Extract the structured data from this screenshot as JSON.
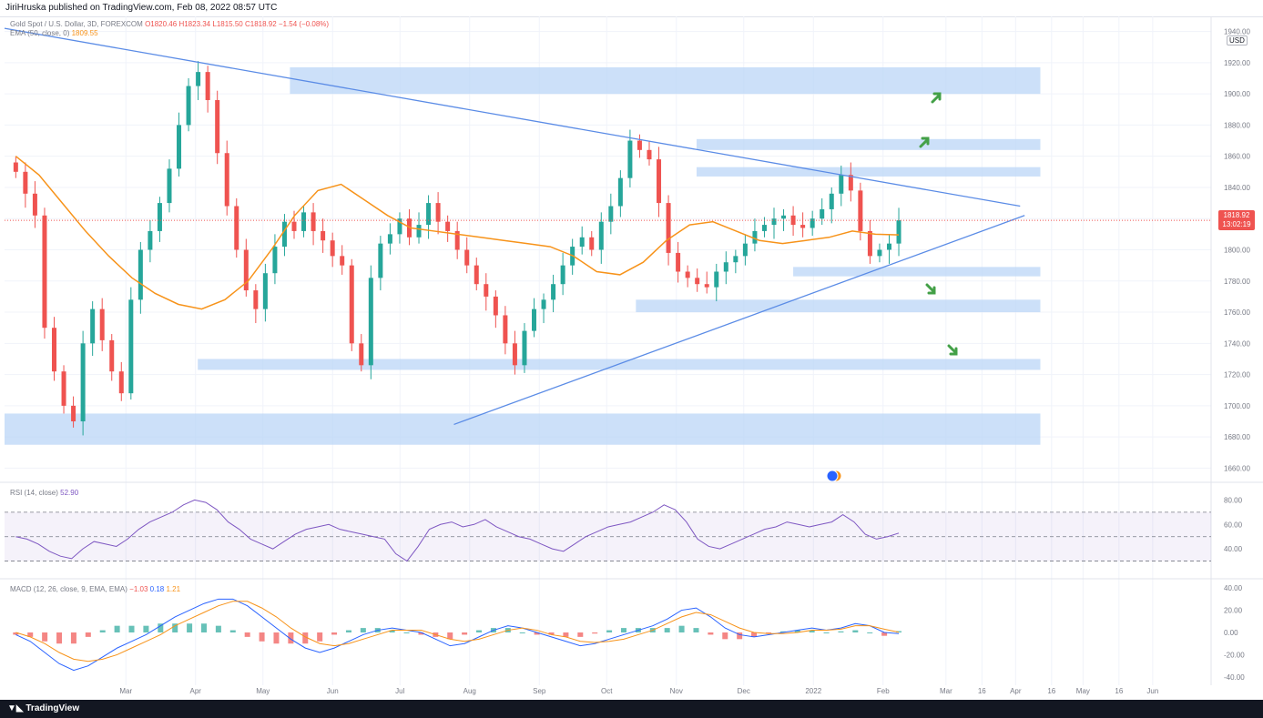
{
  "header": {
    "text": "JiriHruska published on TradingView.com, Feb 08, 2022 08:57 UTC"
  },
  "main_legend": {
    "symbol": "Gold Spot / U.S. Dollar, 3D, FOREXCOM",
    "open": "O1820.46",
    "high": "H1823.34",
    "low": "L1815.50",
    "close": "C1818.92",
    "change": "−1.54 (−0.08%)",
    "ema_label": "EMA (50, close, 0)",
    "ema_value": "1809.55"
  },
  "rsi_legend": {
    "label": "RSI (14, close)",
    "value": "52.90"
  },
  "macd_legend": {
    "label": "MACD (12, 26, close, 9, EMA, EMA)",
    "v1": "−1.03",
    "v2": "0.18",
    "v3": "1.21"
  },
  "price_badge": {
    "price": "1818.92",
    "countdown": "13:02:19"
  },
  "currency": "USD",
  "footer": {
    "brand": "TradingView"
  },
  "colors": {
    "up": "#26a69a",
    "down": "#ef5350",
    "ema": "#f7931a",
    "trendline": "#5b8ce6",
    "zone": "#bbd6f7",
    "rsi": "#7e57c2",
    "macd": "#2962ff",
    "signal": "#f7931a",
    "arrow": "#43a047"
  },
  "icons": {
    "earnings_flag": "us-flag-event-icon",
    "arrow": "green-arrow-icon"
  },
  "chart_data": [
    {
      "type": "candlestick",
      "title": "Gold Spot / U.S. Dollar, 3D, FOREXCOM",
      "xlabel": "",
      "ylabel": "",
      "y_ticks": [
        1660,
        1680,
        1700,
        1720,
        1740,
        1760,
        1780,
        1800,
        1820,
        1840,
        1860,
        1880,
        1900,
        1920,
        1940
      ],
      "x_ticks": [
        "Mar",
        "Apr",
        "May",
        "Jun",
        "Jul",
        "Aug",
        "Sep",
        "Oct",
        "Nov",
        "Dec",
        "2022",
        "Feb",
        "Mar",
        "16",
        "Apr",
        "16",
        "May",
        "16",
        "Jun"
      ],
      "ylim": [
        1655,
        1945
      ],
      "series": [
        {
          "name": "EMA (50, close, 0)",
          "values": [
            1860,
            1848,
            1830,
            1812,
            1796,
            1782,
            1772,
            1765,
            1762,
            1768,
            1780,
            1800,
            1822,
            1838,
            1842,
            1832,
            1822,
            1814,
            1812,
            1810,
            1808,
            1806,
            1804,
            1802,
            1796,
            1786,
            1784,
            1792,
            1806,
            1816,
            1818,
            1812,
            1806,
            1804,
            1806,
            1808,
            1812,
            1810,
            1809.55
          ]
        }
      ],
      "close_prices": [
        1850,
        1836,
        1822,
        1750,
        1722,
        1700,
        1690,
        1740,
        1762,
        1742,
        1722,
        1708,
        1768,
        1800,
        1812,
        1830,
        1852,
        1880,
        1905,
        1914,
        1896,
        1862,
        1828,
        1800,
        1774,
        1762,
        1785,
        1802,
        1818,
        1812,
        1824,
        1812,
        1806,
        1796,
        1790,
        1740,
        1726,
        1782,
        1804,
        1810,
        1820,
        1808,
        1816,
        1830,
        1818,
        1812,
        1800,
        1790,
        1778,
        1770,
        1758,
        1740,
        1726,
        1748,
        1762,
        1768,
        1778,
        1790,
        1802,
        1808,
        1800,
        1818,
        1828,
        1846,
        1870,
        1864,
        1858,
        1830,
        1798,
        1786,
        1782,
        1778,
        1776,
        1786,
        1792,
        1796,
        1804,
        1812,
        1816,
        1820,
        1822,
        1816,
        1814,
        1820,
        1826,
        1836,
        1848,
        1838,
        1812,
        1796,
        1800,
        1804,
        1818.92
      ],
      "horizontal_zones": [
        [
          1900,
          1917
        ],
        [
          1864,
          1871
        ],
        [
          1847,
          1853
        ],
        [
          1783,
          1789
        ],
        [
          1760,
          1768
        ],
        [
          1723,
          1730
        ],
        [
          1675,
          1695
        ]
      ],
      "trendlines": [
        {
          "from": [
            "2021-01-05",
            1942
          ],
          "to": [
            "2022-04-02",
            1828
          ]
        },
        {
          "from": [
            "2021-07-24",
            1688
          ],
          "to": [
            "2022-04-04",
            1822
          ]
        }
      ]
    },
    {
      "type": "line",
      "title": "RSI (14, close)",
      "ylim": [
        20,
        90
      ],
      "y_ticks": [
        40,
        60,
        80
      ],
      "levels": [
        30,
        50,
        70
      ],
      "series": [
        {
          "name": "RSI (14, close)",
          "values": [
            50,
            48,
            44,
            38,
            34,
            32,
            40,
            46,
            44,
            42,
            48,
            56,
            62,
            66,
            70,
            76,
            80,
            78,
            72,
            62,
            56,
            48,
            44,
            40,
            46,
            52,
            56,
            58,
            60,
            56,
            54,
            52,
            50,
            48,
            36,
            30,
            42,
            56,
            60,
            62,
            58,
            60,
            64,
            58,
            54,
            50,
            48,
            44,
            40,
            38,
            44,
            50,
            54,
            58,
            60,
            62,
            66,
            70,
            76,
            72,
            62,
            48,
            42,
            40,
            44,
            48,
            52,
            56,
            58,
            62,
            60,
            58,
            60,
            62,
            68,
            62,
            52,
            48,
            50,
            52.9
          ]
        }
      ]
    },
    {
      "type": "bar+line",
      "title": "MACD (12, 26, close, 9, EMA, EMA)",
      "ylim": [
        -45,
        45
      ],
      "y_ticks": [
        -40,
        -20,
        0,
        20,
        40
      ],
      "series": [
        {
          "name": "MACD",
          "values": [
            -2,
            -8,
            -18,
            -28,
            -34,
            -30,
            -22,
            -14,
            -8,
            -2,
            6,
            14,
            20,
            26,
            30,
            30,
            24,
            14,
            4,
            -6,
            -14,
            -18,
            -14,
            -8,
            -2,
            2,
            4,
            2,
            0,
            -6,
            -12,
            -10,
            -4,
            2,
            6,
            4,
            0,
            -4,
            -8,
            -12,
            -10,
            -6,
            -2,
            2,
            6,
            12,
            20,
            22,
            14,
            4,
            -2,
            -4,
            -2,
            0,
            2,
            4,
            2,
            4,
            8,
            6,
            0,
            -1.03
          ]
        },
        {
          "name": "Signal",
          "values": [
            0,
            -4,
            -10,
            -18,
            -24,
            -26,
            -24,
            -20,
            -14,
            -8,
            -2,
            6,
            12,
            18,
            24,
            28,
            28,
            22,
            14,
            4,
            -4,
            -10,
            -12,
            -10,
            -6,
            -2,
            2,
            2,
            2,
            -2,
            -6,
            -8,
            -6,
            -2,
            2,
            4,
            2,
            -2,
            -4,
            -8,
            -9,
            -8,
            -6,
            -2,
            2,
            8,
            14,
            18,
            16,
            10,
            4,
            0,
            -1,
            -1,
            0,
            2,
            2,
            3,
            6,
            6,
            3,
            0.18
          ]
        },
        {
          "name": "Histogram",
          "values": [
            -2,
            -4,
            -8,
            -10,
            -10,
            -4,
            2,
            6,
            6,
            6,
            8,
            8,
            8,
            8,
            6,
            2,
            -4,
            -8,
            -10,
            -10,
            -10,
            -8,
            -2,
            2,
            4,
            4,
            2,
            0,
            -2,
            -4,
            -6,
            -2,
            2,
            4,
            4,
            0,
            -2,
            -2,
            -4,
            -4,
            -1,
            2,
            4,
            4,
            4,
            4,
            6,
            4,
            -2,
            -6,
            -6,
            -4,
            -1,
            1,
            2,
            2,
            0,
            1,
            2,
            0,
            -3,
            1.21
          ]
        }
      ]
    }
  ]
}
